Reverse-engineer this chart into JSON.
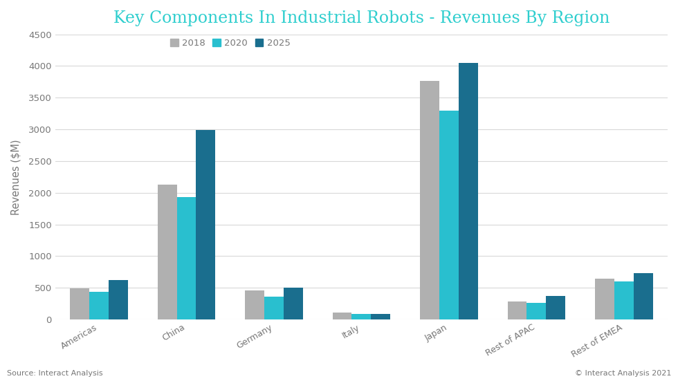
{
  "title": "Key Components In Industrial Robots - Revenues By Region",
  "title_color": "#2ecece",
  "ylabel": "Revenues ($M)",
  "source_left": "Source: Interact Analysis",
  "source_right": "© Interact Analysis 2021",
  "background_color": "#ffffff",
  "plot_bg_color": "#ffffff",
  "categories": [
    "Americas",
    "China",
    "Germany",
    "Italy",
    "Japan",
    "Rest of APAC",
    "Rest of EMEA"
  ],
  "years": [
    "2018",
    "2020",
    "2025"
  ],
  "bar_colors": [
    "#b0b0b0",
    "#29bfcf",
    "#1a6e8e"
  ],
  "values": {
    "2018": [
      490,
      2130,
      460,
      110,
      3760,
      285,
      645
    ],
    "2020": [
      440,
      1930,
      360,
      90,
      3300,
      260,
      600
    ],
    "2025": [
      625,
      2990,
      500,
      90,
      4050,
      370,
      735
    ]
  },
  "ylim": [
    0,
    4500
  ],
  "yticks": [
    0,
    500,
    1000,
    1500,
    2000,
    2500,
    3000,
    3500,
    4000,
    4500
  ],
  "bar_width": 0.22,
  "grid_color": "#d8d8d8",
  "tick_color": "#777777",
  "label_color": "#777777"
}
